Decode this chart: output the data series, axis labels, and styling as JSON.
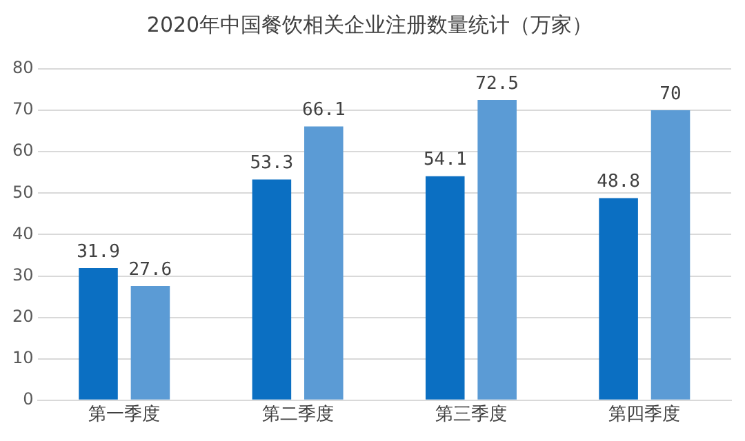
{
  "chart_data": {
    "type": "bar",
    "title": "2020年中国餐饮相关企业注册数量统计（万家）",
    "categories": [
      "第一季度",
      "第二季度",
      "第三季度",
      "第四季度"
    ],
    "series": [
      {
        "color": "#0b6fc2",
        "values": [
          31.9,
          53.3,
          54.1,
          48.8
        ]
      },
      {
        "color": "#5b9bd5",
        "values": [
          27.6,
          66.1,
          72.5,
          70
        ]
      }
    ],
    "ylim": [
      0,
      80
    ],
    "yticks": [
      0,
      10,
      20,
      30,
      40,
      50,
      60,
      70,
      80
    ],
    "grid": "y",
    "legend": false,
    "data_labels": true
  }
}
